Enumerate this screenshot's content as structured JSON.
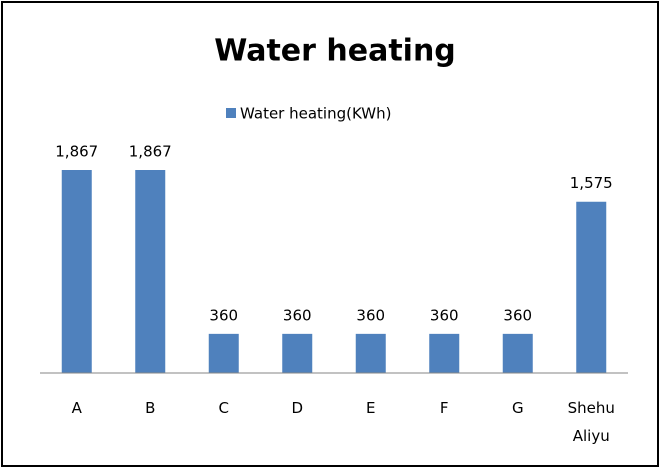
{
  "chart_data": {
    "type": "bar",
    "title": "Water heating",
    "categories": [
      "A",
      "B",
      "C",
      "D",
      "E",
      "F",
      "G",
      "Shehu Aliyu"
    ],
    "series": [
      {
        "name": "Water heating(KWh)",
        "color": "#4f81bd",
        "values": [
          1867,
          1867,
          360,
          360,
          360,
          360,
          360,
          1575
        ],
        "value_labels": [
          "1,867",
          "1,867",
          "360",
          "360",
          "360",
          "360",
          "360",
          "1,575"
        ]
      }
    ]
  }
}
